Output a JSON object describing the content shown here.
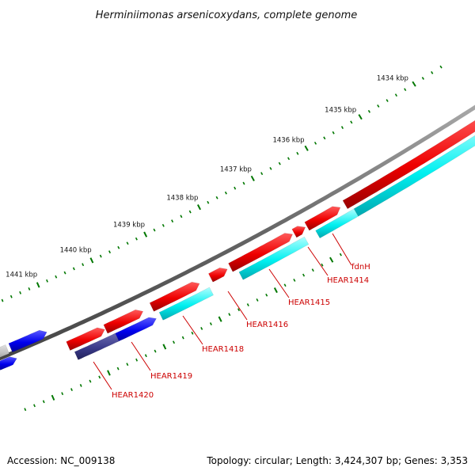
{
  "title": "Herminiimonas arsenicoxydans, complete genome",
  "footer": {
    "accession": "Accession: NC_009138",
    "summary": "Topology: circular; Length: 3,424,307 bp; Genes: 3,353"
  },
  "colors": {
    "forward_cds": "#ff0000",
    "reverse_cds": "#0000ff",
    "forward_gene": "#00ffff",
    "reverse_gene": "#3a3a8a",
    "other": "#b8b8b8",
    "backbone": "#777777",
    "ticks": "#007700"
  },
  "chart_data": {
    "type": "genome-map",
    "topology": "circular",
    "length_bp": 3424307,
    "gene_count": 3353,
    "scale_labels": [
      "1434 kbp",
      "1435 kbp",
      "1436 kbp",
      "1437 kbp",
      "1438 kbp",
      "1439 kbp",
      "1440 kbp",
      "1441 kbp"
    ],
    "gene_labels": [
      "fdnH",
      "HEAR1414",
      "HEAR1415",
      "HEAR1416",
      "HEAR1418",
      "HEAR1419",
      "HEAR1420"
    ]
  }
}
